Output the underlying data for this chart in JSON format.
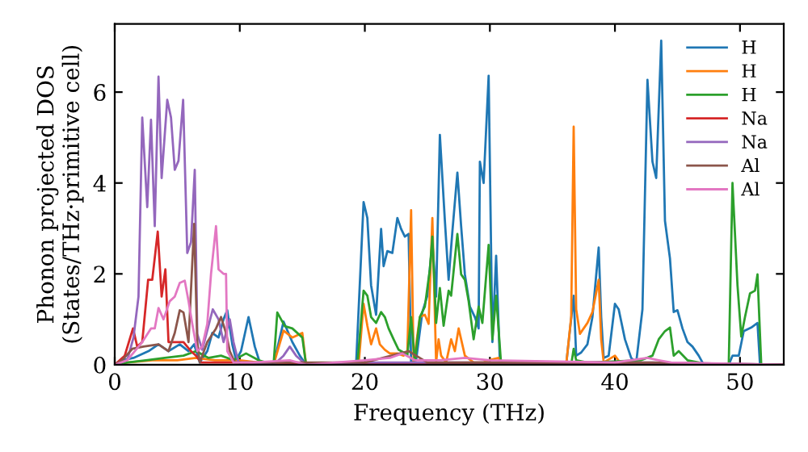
{
  "chart_data": {
    "type": "line",
    "xlabel": "Frequency (THz)",
    "ylabel": "Phonon projected DOS\n(States/THz·primitive cell)",
    "xlim": [
      0,
      53.5
    ],
    "ylim": [
      0,
      7.5
    ],
    "xticks": [
      0,
      10,
      20,
      30,
      40,
      50
    ],
    "yticks": [
      0,
      2,
      4,
      6
    ],
    "grid": false,
    "legend": "top right",
    "marker": "none",
    "line_style": "solid",
    "series": [
      {
        "name": "H",
        "color": "#1f77b4",
        "x": [
          0,
          0.6,
          1.5,
          2.7,
          3.5,
          4.3,
          5.2,
          5.9,
          6.35,
          6.8,
          7.4,
          7.8,
          8.3,
          8.7,
          9.0,
          9.4,
          9.7,
          10.1,
          10.7,
          11.2,
          11.6,
          12.7,
          13.5,
          14.2,
          14.8,
          15.3,
          19.3,
          19.9,
          20.2,
          20.5,
          20.9,
          21.3,
          21.5,
          21.8,
          22.2,
          22.6,
          22.9,
          23.2,
          23.5,
          23.7,
          24.1,
          24.6,
          25.0,
          25.4,
          25.7,
          26.0,
          26.4,
          26.7,
          27.0,
          27.4,
          27.7,
          28.0,
          28.4,
          28.8,
          29.1,
          29.2,
          29.5,
          29.9,
          30.2,
          30.5,
          30.8,
          31.0,
          36.1,
          36.7,
          36.9,
          37.3,
          37.8,
          38.2,
          38.7,
          38.9,
          39.1,
          39.5,
          40.0,
          40.3,
          40.8,
          41.3,
          41.7,
          42.2,
          42.6,
          43.0,
          43.3,
          43.7,
          44.0,
          44.4,
          44.7,
          45.0,
          45.4,
          45.8,
          46.2,
          46.7,
          47.1,
          49.1,
          49.4,
          49.9,
          50.3,
          50.9,
          51.4,
          51.6,
          53.5
        ],
        "values": [
          0,
          0.1,
          0.15,
          0.3,
          0.45,
          0.3,
          0.45,
          0.3,
          0.45,
          0.05,
          0.3,
          0.7,
          0.6,
          1.0,
          1.2,
          0.45,
          0.1,
          0.3,
          1.05,
          0.4,
          0.05,
          0,
          0.95,
          0.5,
          0.2,
          0,
          0,
          3.58,
          3.23,
          1.75,
          1.1,
          2.99,
          2.17,
          2.5,
          2.46,
          3.23,
          2.99,
          2.82,
          2.88,
          0.05,
          0.1,
          1.16,
          1.52,
          2.7,
          1.5,
          5.06,
          3.17,
          1.87,
          2.93,
          4.23,
          3.05,
          1.99,
          1.28,
          1.05,
          0.8,
          4.47,
          4.0,
          6.36,
          0.5,
          2.4,
          0.05,
          0,
          0,
          1.52,
          0.2,
          0.27,
          0.45,
          1.05,
          2.58,
          1.05,
          0.15,
          0.2,
          1.34,
          1.22,
          0.56,
          0.15,
          0.05,
          1.22,
          6.27,
          4.47,
          4.11,
          7.13,
          3.17,
          2.34,
          1.16,
          1.2,
          0.8,
          0.5,
          0.4,
          0.2,
          0,
          0,
          0.2,
          0.2,
          0.74,
          0.82,
          0.92,
          0,
          0
        ]
      },
      {
        "name": "H",
        "color": "#ff7f0e",
        "x": [
          0,
          1.0,
          3.0,
          5.0,
          6.5,
          8.0,
          10.0,
          11.5,
          12.7,
          13.5,
          14.2,
          15.0,
          15.3,
          19.5,
          19.9,
          20.2,
          20.5,
          20.9,
          21.2,
          21.6,
          22.0,
          22.6,
          23.1,
          23.4,
          23.7,
          23.9,
          24.4,
          24.8,
          25.1,
          25.4,
          25.7,
          25.9,
          26.1,
          26.5,
          26.9,
          27.2,
          27.5,
          28.0,
          28.7,
          29.5,
          29.9,
          30.7,
          31.0,
          36.1,
          36.5,
          36.7,
          36.9,
          37.2,
          37.8,
          38.2,
          38.7,
          38.9,
          39.1,
          40.0,
          40.4,
          41.0,
          53.5
        ],
        "values": [
          0,
          0.05,
          0.1,
          0.1,
          0.15,
          0.1,
          0.1,
          0.05,
          0,
          0.75,
          0.6,
          0.7,
          0,
          0,
          1.34,
          0.86,
          0.45,
          0.8,
          0.45,
          0.33,
          0.25,
          0.25,
          0.2,
          0.3,
          3.4,
          0.05,
          1.05,
          1.1,
          0.9,
          3.23,
          0.05,
          0.56,
          0.2,
          0.05,
          0.56,
          0.3,
          0.8,
          0.2,
          0.05,
          0.05,
          0.1,
          0.15,
          0,
          0,
          1.05,
          5.24,
          1.22,
          0.68,
          0.92,
          1.16,
          1.87,
          0.56,
          0.05,
          0.2,
          0.05,
          0,
          0
        ]
      },
      {
        "name": "H",
        "color": "#2ca02c",
        "x": [
          0,
          1.0,
          2.5,
          4.0,
          5.5,
          6.5,
          7.5,
          8.5,
          9.5,
          10.5,
          11.5,
          12.7,
          13.0,
          13.6,
          14.2,
          15.0,
          15.3,
          19.4,
          19.9,
          20.2,
          20.5,
          20.9,
          21.3,
          21.6,
          21.9,
          22.3,
          22.7,
          23.1,
          23.4,
          23.7,
          24.0,
          24.4,
          24.8,
          25.2,
          25.4,
          25.7,
          26.0,
          26.3,
          26.7,
          26.9,
          27.4,
          27.7,
          28.0,
          28.3,
          28.7,
          29.1,
          29.4,
          29.9,
          30.2,
          30.5,
          30.9,
          36.5,
          36.7,
          36.9,
          37.8,
          42.1,
          43.0,
          43.5,
          44.0,
          44.4,
          44.7,
          45.1,
          45.8,
          46.7,
          47.1,
          49.1,
          49.4,
          49.8,
          50.1,
          50.4,
          50.8,
          51.2,
          51.4,
          51.7,
          53.5
        ],
        "values": [
          0,
          0.05,
          0.1,
          0.15,
          0.2,
          0.3,
          0.15,
          0.2,
          0.1,
          0.25,
          0.1,
          0,
          1.15,
          0.85,
          0.8,
          0.6,
          0,
          0,
          1.63,
          1.52,
          1.05,
          0.92,
          1.16,
          1.05,
          0.8,
          0.56,
          0.33,
          0.27,
          0.2,
          1.05,
          0.05,
          1.05,
          1.28,
          2.1,
          2.82,
          0.92,
          1.69,
          0.86,
          1.63,
          1.52,
          2.88,
          1.99,
          1.87,
          1.4,
          0.56,
          1.28,
          0.92,
          2.64,
          0.56,
          1.52,
          0,
          0,
          0.35,
          0.1,
          0.05,
          0.1,
          0.2,
          0.56,
          0.74,
          0.82,
          0.2,
          0.3,
          0.1,
          0.05,
          0,
          0,
          4.0,
          1.75,
          0.62,
          1.05,
          1.57,
          1.63,
          1.99,
          0,
          0
        ]
      },
      {
        "name": "Na",
        "color": "#d62728",
        "x": [
          0,
          0.8,
          1.46,
          1.8,
          2.2,
          2.67,
          3.0,
          3.44,
          3.75,
          4.05,
          4.3,
          4.8,
          5.5,
          6.1,
          6.5,
          6.9,
          8.0,
          10.0,
          12.0,
          20.0,
          25.0,
          30.0,
          40.0,
          53.5
        ],
        "values": [
          0,
          0.2,
          0.8,
          0.4,
          0.5,
          1.87,
          1.87,
          2.93,
          1.5,
          2.1,
          0.5,
          0.5,
          0.5,
          0.3,
          0.2,
          0.05,
          0.05,
          0.05,
          0,
          0.03,
          0.03,
          0.03,
          0.02,
          0
        ]
      },
      {
        "name": "Na",
        "color": "#9467bd",
        "x": [
          0,
          0.5,
          1.0,
          1.5,
          1.9,
          2.2,
          2.6,
          2.9,
          3.2,
          3.5,
          3.75,
          4.2,
          4.5,
          4.8,
          5.1,
          5.47,
          5.8,
          6.1,
          6.4,
          6.6,
          7.0,
          7.84,
          8.3,
          8.7,
          9.2,
          9.5,
          9.9,
          11.0,
          12.7,
          13.5,
          14.0,
          14.5,
          15.3,
          20.0,
          25.0,
          30.0,
          43.0,
          53.5
        ],
        "values": [
          0,
          0.05,
          0.1,
          0.6,
          1.5,
          5.44,
          3.47,
          5.39,
          3.05,
          6.34,
          4.11,
          5.83,
          5.44,
          4.29,
          4.49,
          5.83,
          2.46,
          2.7,
          4.29,
          0.68,
          0.33,
          1.22,
          1.0,
          0.5,
          1.0,
          0.5,
          0.05,
          0.05,
          0,
          0.2,
          0.4,
          0.2,
          0,
          0.05,
          0.05,
          0.05,
          0.05,
          0
        ]
      },
      {
        "name": "Al",
        "color": "#8c564b",
        "x": [
          0,
          0.6,
          1.4,
          2.3,
          3.5,
          4.3,
          4.8,
          5.2,
          5.5,
          5.9,
          6.35,
          6.6,
          6.8,
          7.4,
          8.1,
          8.5,
          8.9,
          9.2,
          9.6,
          11.0,
          13.0,
          15.0,
          20.0,
          23.5,
          25.0,
          28.0,
          30.0,
          43.0,
          53.5
        ],
        "values": [
          0,
          0.1,
          0.35,
          0.4,
          0.45,
          0.3,
          0.7,
          1.2,
          1.15,
          0.5,
          3.1,
          0.5,
          0.05,
          0.5,
          0.8,
          1.05,
          0.7,
          0.3,
          0.05,
          0.05,
          0.05,
          0.05,
          0.05,
          0.3,
          0.05,
          0.05,
          0.05,
          0.05,
          0
        ]
      },
      {
        "name": "Al",
        "color": "#e377c2",
        "x": [
          0,
          1.0,
          2.2,
          2.9,
          3.2,
          3.5,
          3.9,
          4.4,
          4.8,
          5.2,
          5.6,
          5.9,
          6.2,
          6.6,
          7.0,
          7.4,
          7.7,
          8.1,
          8.3,
          8.7,
          8.9,
          9.0,
          9.5,
          11.0,
          14.0,
          15.3,
          20.0,
          22.0,
          23.0,
          24.0,
          26.0,
          28.0,
          30.0,
          40.0,
          42.6,
          43.5,
          44.5,
          53.5
        ],
        "values": [
          0,
          0.1,
          0.5,
          0.8,
          0.8,
          1.25,
          1.0,
          1.4,
          1.5,
          1.8,
          1.85,
          1.4,
          0.9,
          0.3,
          0.4,
          0.9,
          2.0,
          3.05,
          2.1,
          2.0,
          2.0,
          0.3,
          0.05,
          0.05,
          0.1,
          0,
          0.1,
          0.15,
          0.25,
          0.1,
          0.1,
          0.15,
          0.1,
          0.05,
          0.15,
          0.1,
          0.05,
          0
        ]
      }
    ]
  }
}
